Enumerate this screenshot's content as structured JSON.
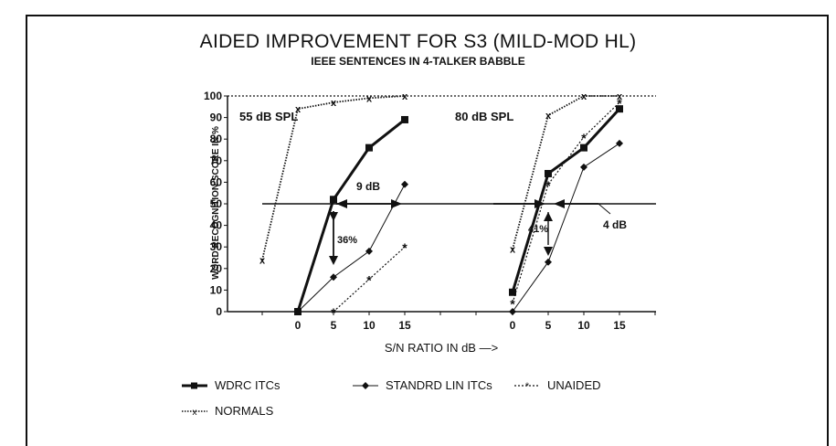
{
  "chart_data": {
    "type": "line",
    "title": "AIDED IMPROVEMENT FOR S3 (MILD-MOD HL)",
    "subtitle": "IEEE SENTENCES IN 4-TALKER BABBLE",
    "xlabel": "S/N RATIO IN dB —>",
    "ylabel": "WORD RECOGNITION SCORE IN %",
    "ylim": [
      0,
      100
    ],
    "yticks": [
      0,
      10,
      20,
      30,
      40,
      50,
      60,
      70,
      80,
      90,
      100
    ],
    "reference_line_y": 50,
    "grid": false,
    "legend_position": "bottom",
    "panels": [
      {
        "label": "55 dB SPL",
        "xticks": [
          0,
          5,
          10,
          15
        ],
        "series": [
          {
            "name": "WDRC ITCs",
            "color": "#111111",
            "x": [
              0,
              5,
              10,
              15
            ],
            "y": [
              0,
              52,
              76,
              89
            ]
          },
          {
            "name": "STANDRD LIN ITCs",
            "color": "#111111",
            "x": [
              0,
              5,
              10,
              15
            ],
            "y": [
              0,
              16,
              28,
              59
            ]
          },
          {
            "name": "UNAIDED",
            "color": "#111111",
            "x": [
              5,
              10,
              15
            ],
            "y": [
              0,
              15,
              30
            ]
          },
          {
            "name": "NORMALS",
            "color": "#111111",
            "x": [
              -5,
              0,
              5,
              10,
              15
            ],
            "y": [
              24,
              94,
              97,
              99,
              100
            ]
          }
        ],
        "annotations": [
          {
            "text": "9 dB"
          },
          {
            "text": "36%"
          }
        ]
      },
      {
        "label": "80 dB SPL",
        "xticks": [
          0,
          5,
          10,
          15
        ],
        "series": [
          {
            "name": "WDRC ITCs",
            "color": "#111111",
            "x": [
              0,
              5,
              10,
              15
            ],
            "y": [
              9,
              64,
              76,
              94
            ]
          },
          {
            "name": "STANDRD LIN ITCs",
            "color": "#111111",
            "x": [
              0,
              5,
              10,
              15
            ],
            "y": [
              0,
              23,
              67,
              78
            ]
          },
          {
            "name": "UNAIDED",
            "color": "#111111",
            "x": [
              0,
              5,
              10,
              15
            ],
            "y": [
              4,
              59,
              81,
              97
            ]
          },
          {
            "name": "NORMALS",
            "color": "#111111",
            "x": [
              0,
              5,
              10,
              15
            ],
            "y": [
              29,
              91,
              100,
              100
            ]
          }
        ],
        "annotations": [
          {
            "text": "41%"
          },
          {
            "text": "4 dB"
          }
        ]
      }
    ]
  },
  "legend": {
    "wdrc": "WDRC ITCs",
    "standard": "STANDRD LIN ITCs",
    "unaided": "UNAIDED",
    "normals": "NORMALS"
  }
}
